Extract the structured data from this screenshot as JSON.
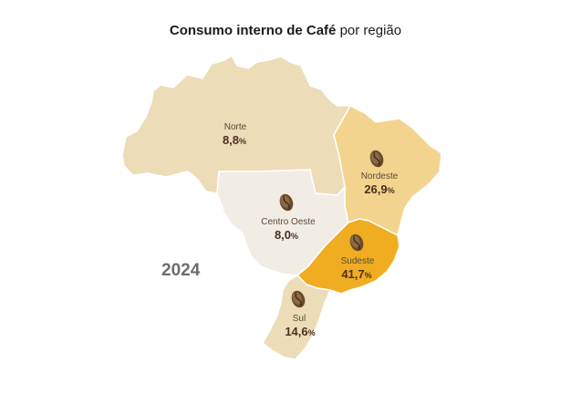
{
  "title": {
    "bold": "Consumo interno de Café",
    "rest": "por região"
  },
  "year": "2024",
  "regions": {
    "norte": {
      "name": "Norte",
      "value": "8,8",
      "unit": "%",
      "color": "#ecdcb8"
    },
    "nordeste": {
      "name": "Nordeste",
      "value": "26,9",
      "unit": "%",
      "color": "#f2d48e"
    },
    "centro": {
      "name": "Centro Oeste",
      "value": "8,0",
      "unit": "%",
      "color": "#f2ede4"
    },
    "sudeste": {
      "name": "Sudeste",
      "value": "41,7",
      "unit": "%",
      "color": "#f0ad22"
    },
    "sul": {
      "name": "Sul",
      "value": "14,6",
      "unit": "%",
      "color": "#ecdcb8"
    }
  },
  "icons": [
    "coffee-bean-icon"
  ]
}
